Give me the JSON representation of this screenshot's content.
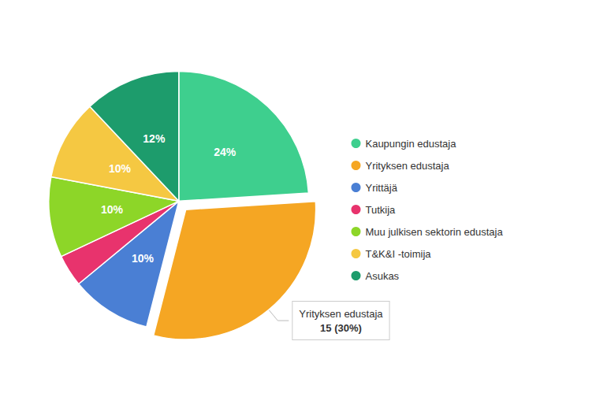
{
  "chart_data": {
    "type": "pie",
    "categories": [
      "Kaupungin edustaja",
      "Yrityksen edustaja",
      "Yrittäjä",
      "Tutkija",
      "Muu julkisen sektorin edustaja",
      "T&K&I -toimija",
      "Asukas"
    ],
    "values": [
      24,
      30,
      10,
      4,
      10,
      10,
      12
    ],
    "colors": [
      "#3ecf8e",
      "#f5a623",
      "#4a7fd4",
      "#e8336d",
      "#8dd628",
      "#f5c842",
      "#1d9c6c"
    ],
    "data_labels": true,
    "value_labels": [
      "24%",
      null,
      "10%",
      null,
      "10%",
      "10%",
      "12%"
    ],
    "legend": "right",
    "annotations": [
      {
        "category": "Yrityksen edustaja",
        "text": "Yrityksen edustaja\n15 (30%)"
      }
    ]
  }
}
